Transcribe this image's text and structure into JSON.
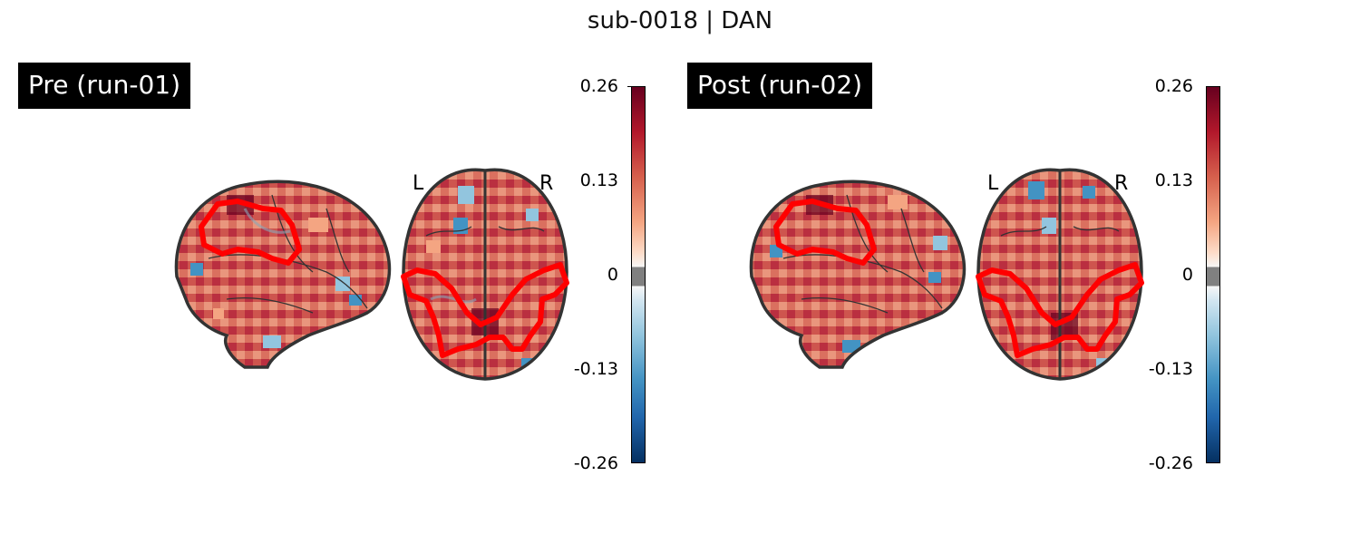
{
  "title": "sub-0018 | DAN",
  "colorbar": {
    "ticks": [
      "0.26",
      "0.13",
      "0",
      "-0.13",
      "-0.26"
    ],
    "colors": {
      "max": "#67001f",
      "mid_pos": "#d6604d",
      "zero": "#808080",
      "mid_neg": "#4393c3",
      "min": "#053061"
    }
  },
  "panels": [
    {
      "label": "Pre (run-01)",
      "left_marker": "L",
      "right_marker": "R"
    },
    {
      "label": "Post (run-02)",
      "left_marker": "L",
      "right_marker": "R"
    }
  ],
  "outline_color": "#ff0000"
}
